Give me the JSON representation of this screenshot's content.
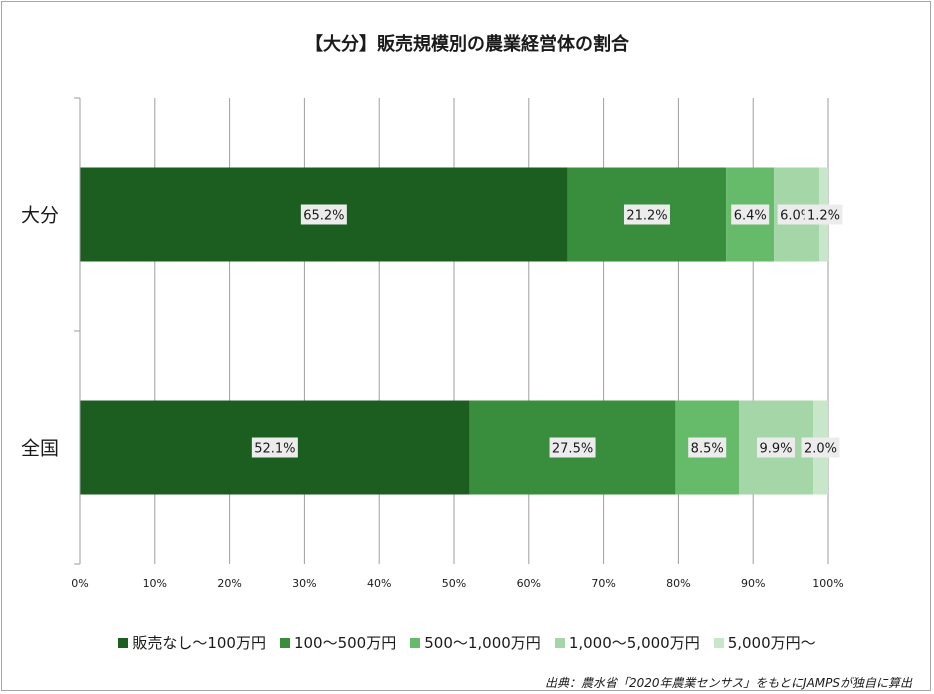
{
  "chart_data": {
    "type": "bar",
    "orientation": "horizontal",
    "stacked": true,
    "title": "【大分】販売規模別の農業経営体の割合",
    "categories": [
      "大分",
      "全国"
    ],
    "series": [
      {
        "name": "販売なし～100万円",
        "values": [
          65.2,
          52.1
        ],
        "labels": [
          "65.2%",
          "52.1%"
        ],
        "color": "#1b5e20"
      },
      {
        "name": "100～500万円",
        "values": [
          21.2,
          27.5
        ],
        "labels": [
          "21.2%",
          "27.5%"
        ],
        "color": "#388e3c"
      },
      {
        "name": "500～1,000万円",
        "values": [
          6.4,
          8.5
        ],
        "labels": [
          "6.4%",
          "8.5%"
        ],
        "color": "#66bb6a"
      },
      {
        "name": "1,000～5,000万円",
        "values": [
          6.0,
          9.9
        ],
        "labels": [
          "6.0%",
          "9.9%"
        ],
        "color": "#a5d6a7"
      },
      {
        "name": "5,000万円～",
        "values": [
          1.2,
          2.0
        ],
        "labels": [
          "1.2%",
          "2.0%"
        ],
        "color": "#c8e6c9"
      }
    ],
    "xlim": [
      0,
      100
    ],
    "x_ticks": [
      "0%",
      "10%",
      "20%",
      "30%",
      "40%",
      "50%",
      "60%",
      "70%",
      "80%",
      "90%",
      "100%"
    ],
    "grid": true,
    "legend_position": "bottom"
  },
  "source_note": "出典：農水省「2020年農業センサス」をもとにJAMPSが独自に算出"
}
